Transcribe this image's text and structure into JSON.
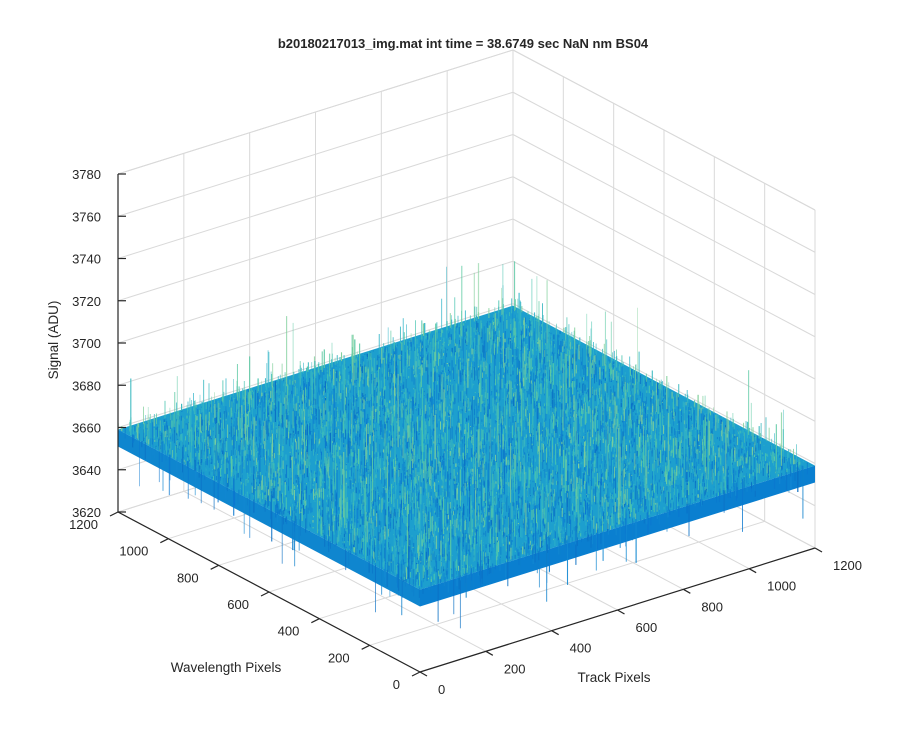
{
  "chart_data": {
    "type": "surface",
    "title": "b20180217013_img.mat int time = 38.6749 sec  NaN nm BS04",
    "xlabel": "Track Pixels",
    "ylabel": "Wavelength Pixels",
    "zlabel": "Signal (ADU)",
    "x_ticks": [
      0,
      200,
      400,
      600,
      800,
      1000,
      1200
    ],
    "y_ticks": [
      0,
      200,
      400,
      600,
      800,
      1000,
      1200
    ],
    "z_ticks": [
      3620,
      3640,
      3660,
      3680,
      3700,
      3720,
      3740,
      3760,
      3780
    ],
    "xlim": [
      0,
      1200
    ],
    "ylim": [
      0,
      1200
    ],
    "zlim": [
      3620,
      3780
    ],
    "x_extent": [
      0,
      1200
    ],
    "y_extent": [
      0,
      1200
    ],
    "z_mean": 3659,
    "z_noise_min": 3634,
    "z_noise_max": 3728,
    "grid": true,
    "colors": {
      "low": "#0072bd",
      "mid": "#19b2c5",
      "high": "#7fcf9a"
    }
  }
}
